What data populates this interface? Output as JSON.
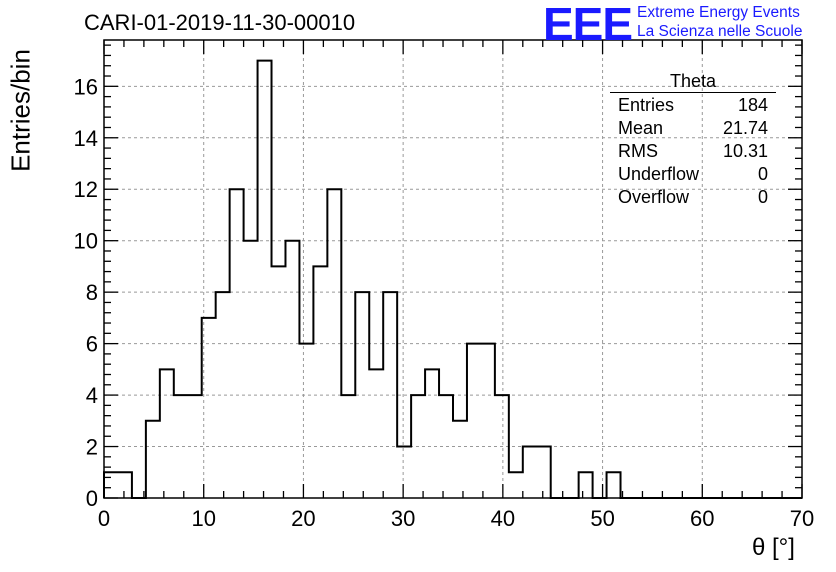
{
  "title": "CARI-01-2019-11-30-00010",
  "logo": {
    "mark": "EEE",
    "line1": "Extreme Energy Events",
    "line2": "La Scienza nelle Scuole",
    "color": "#1a1aff"
  },
  "stats_box": {
    "name": "Theta",
    "rows": [
      {
        "label": "Entries",
        "value": "184"
      },
      {
        "label": "Mean",
        "value": "21.74"
      },
      {
        "label": "RMS",
        "value": "10.31"
      },
      {
        "label": "Underflow",
        "value": "0"
      },
      {
        "label": "Overflow",
        "value": "0"
      }
    ]
  },
  "chart_data": {
    "type": "bar",
    "title": "CARI-01-2019-11-30-00010",
    "xlabel": "θ [°]",
    "ylabel": "Entries/bin",
    "xlim": [
      0,
      70
    ],
    "ylim": [
      0,
      17.8
    ],
    "grid": true,
    "bin_width": 1.4,
    "bin_start": 0,
    "values": [
      1,
      1,
      0,
      3,
      5,
      4,
      4,
      7,
      8,
      12,
      10,
      17,
      9,
      10,
      6,
      9,
      12,
      4,
      8,
      5,
      8,
      2,
      4,
      5,
      4,
      3,
      6,
      6,
      4,
      1,
      2,
      2,
      0,
      0,
      1,
      0,
      1,
      0,
      0,
      0,
      0,
      0,
      0,
      0,
      0,
      0,
      0,
      0,
      0,
      0
    ],
    "xticks": [
      "0",
      "10",
      "20",
      "30",
      "40",
      "50",
      "60",
      "70"
    ],
    "yticks": [
      "0",
      "2",
      "4",
      "6",
      "8",
      "10",
      "12",
      "14",
      "16"
    ]
  }
}
